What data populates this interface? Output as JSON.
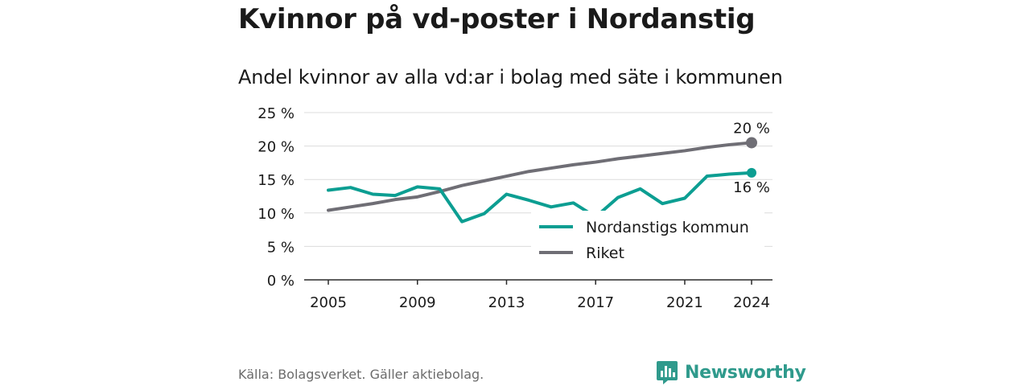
{
  "title": "Kvinnor på vd-poster i Nordanstig",
  "subtitle": "Andel kvinnor av alla vd:ar i bolag med säte i kommunen",
  "source": "Källa: Bolagsverket. Gäller aktiebolag.",
  "brand": "Newsworthy",
  "colors": {
    "nordanstig": "#0c9e92",
    "riket": "#6f6e75",
    "brand": "#2f9a8c"
  },
  "chart_data": {
    "type": "line",
    "title": "Andel kvinnor av alla vd:ar i bolag med säte i kommunen",
    "x": [
      2005,
      2006,
      2007,
      2008,
      2009,
      2010,
      2011,
      2012,
      2013,
      2014,
      2015,
      2016,
      2017,
      2018,
      2019,
      2020,
      2021,
      2022,
      2023,
      2024
    ],
    "xticks": [
      2005,
      2009,
      2013,
      2017,
      2021,
      2024
    ],
    "xtick_labels": [
      "2005",
      "2009",
      "2013",
      "2017",
      "2021",
      "2024"
    ],
    "yticks": [
      0,
      5,
      10,
      15,
      20,
      25
    ],
    "ytick_labels": [
      "0 %",
      "5 %",
      "10 %",
      "15 %",
      "20 %",
      "25 %"
    ],
    "xlim": [
      2005,
      2024
    ],
    "ylim": [
      0,
      25
    ],
    "grid": true,
    "legend": "bottom-right",
    "series": [
      {
        "name": "Nordanstigs kommun",
        "color": "#0c9e92",
        "values": [
          13.4,
          13.8,
          12.8,
          12.6,
          13.9,
          13.6,
          8.7,
          9.9,
          12.8,
          11.9,
          10.9,
          11.5,
          9.4,
          12.3,
          13.6,
          11.4,
          12.2,
          15.5,
          15.8,
          16.0
        ],
        "end_label": "16 %"
      },
      {
        "name": "Riket",
        "color": "#6f6e75",
        "values": [
          10.4,
          10.9,
          11.4,
          12.0,
          12.4,
          13.2,
          14.1,
          14.8,
          15.5,
          16.2,
          16.7,
          17.2,
          17.6,
          18.1,
          18.5,
          18.9,
          19.3,
          19.8,
          20.2,
          20.5
        ],
        "end_label": "20 %"
      }
    ]
  }
}
